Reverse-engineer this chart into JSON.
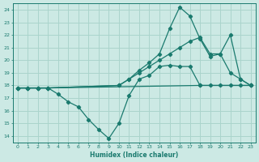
{
  "xlabel": "Humidex (Indice chaleur)",
  "xlim": [
    -0.5,
    23.5
  ],
  "ylim": [
    13.5,
    24.5
  ],
  "xticks": [
    0,
    1,
    2,
    3,
    4,
    5,
    6,
    7,
    8,
    9,
    10,
    11,
    12,
    13,
    14,
    15,
    16,
    17,
    18,
    19,
    20,
    21,
    22,
    23
  ],
  "yticks": [
    14,
    15,
    16,
    17,
    18,
    19,
    20,
    21,
    22,
    23,
    24
  ],
  "bg_color": "#cce9e4",
  "grid_color": "#aad4cc",
  "line_color": "#1a7a6e",
  "line1_x": [
    0,
    1,
    2,
    3,
    18,
    23
  ],
  "line1_y": [
    17.8,
    17.8,
    17.8,
    17.8,
    18.0,
    18.0
  ],
  "line2_x": [
    0,
    1,
    2,
    3,
    4,
    5,
    6,
    7,
    8,
    9,
    10,
    11,
    12,
    13,
    14,
    15,
    16,
    17,
    18,
    19,
    20,
    21,
    22,
    23
  ],
  "line2_y": [
    17.8,
    17.8,
    17.8,
    17.8,
    17.3,
    16.7,
    16.3,
    15.3,
    14.5,
    13.8,
    15.0,
    17.2,
    18.5,
    18.8,
    19.5,
    19.6,
    19.5,
    19.5,
    18.0,
    18.0,
    18.0,
    18.0,
    18.0,
    18.0
  ],
  "line3_x": [
    0,
    1,
    2,
    3,
    10,
    11,
    12,
    13,
    14,
    15,
    16,
    17,
    18,
    19,
    20,
    21,
    22,
    23
  ],
  "line3_y": [
    17.8,
    17.8,
    17.8,
    17.8,
    18.0,
    18.5,
    19.2,
    19.8,
    20.5,
    22.5,
    24.2,
    23.5,
    21.7,
    20.3,
    20.5,
    19.0,
    18.5,
    18.0
  ],
  "line4_x": [
    0,
    1,
    2,
    3,
    10,
    11,
    12,
    13,
    14,
    15,
    16,
    17,
    18,
    19,
    20,
    21,
    22,
    23
  ],
  "line4_y": [
    17.8,
    17.8,
    17.8,
    17.8,
    18.0,
    18.5,
    19.0,
    19.5,
    20.0,
    20.5,
    21.0,
    21.5,
    21.8,
    20.5,
    20.5,
    22.0,
    18.5,
    18.0
  ]
}
